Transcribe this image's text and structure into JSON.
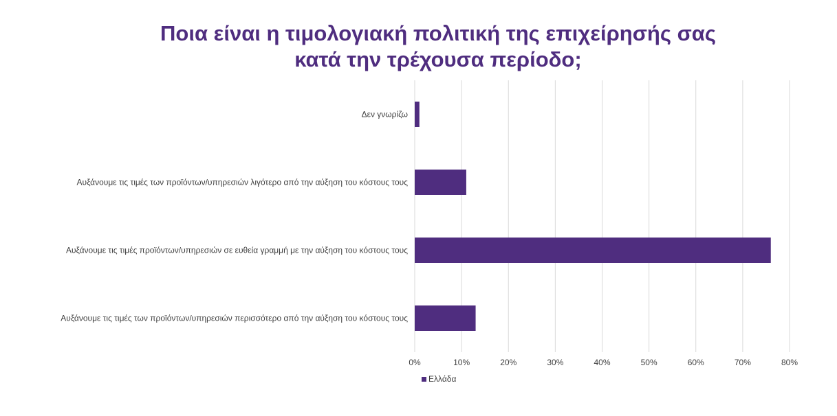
{
  "chart_data": {
    "type": "bar",
    "orientation": "horizontal",
    "title_lines": [
      "Ποια είναι η τιμολογιακή πολιτική της επιχείρησής σας",
      "κατά την τρέχουσα περίοδο;"
    ],
    "categories": [
      "Δεν γνωρίζω",
      "Αυξάνουμε τις τιμές των προϊόντων/υπηρεσιών λιγότερο από την αύξηση του κόστους τους",
      "Αυξάνουμε τις τιμές προϊόντων/υπηρεσιών σε ευθεία γραμμή με την αύξηση του κόστους τους",
      "Αυξάνουμε τις τιμές των προϊόντων/υπηρεσιών περισσότερο από την αύξηση του κόστους τους"
    ],
    "series": [
      {
        "name": "Ελλάδα",
        "values": [
          1,
          11,
          76,
          13
        ],
        "color": "#4f2d7f"
      }
    ],
    "xlim": [
      0,
      80
    ],
    "xticks": [
      "0%",
      "10%",
      "20%",
      "30%",
      "40%",
      "50%",
      "60%",
      "70%",
      "80%"
    ],
    "grid": true,
    "legend_position": "bottom-left"
  }
}
